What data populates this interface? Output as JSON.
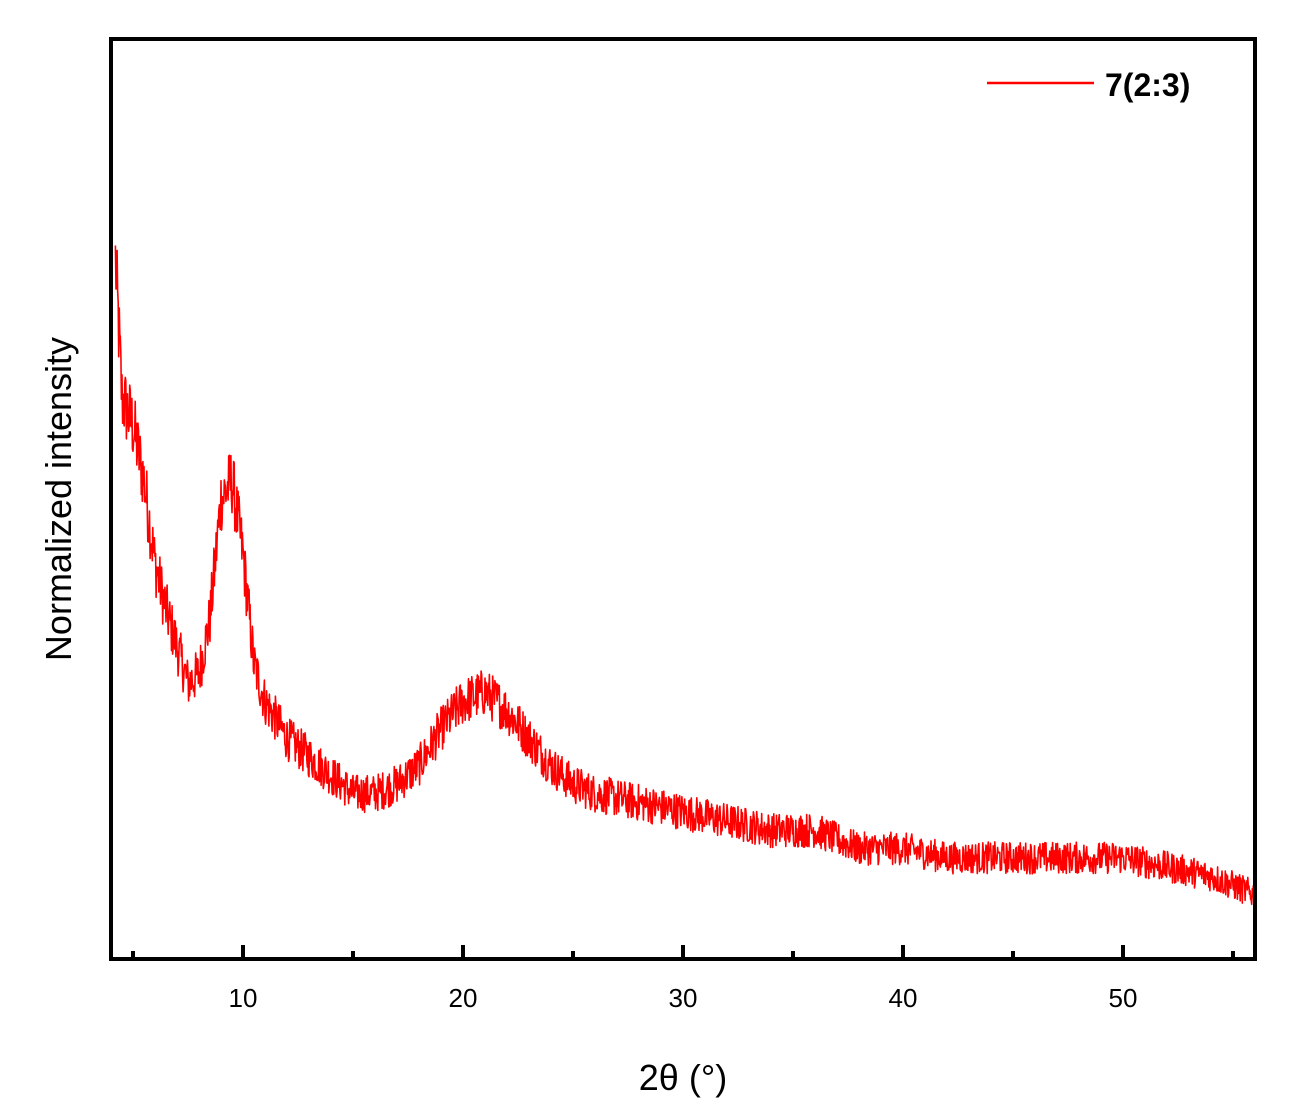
{
  "chart_data": {
    "type": "line",
    "title": "",
    "xlabel": "2θ (°)",
    "ylabel": "Normalized intensity",
    "xlim": [
      4,
      56
    ],
    "ylim": [
      0,
      1
    ],
    "x_ticks_major": [
      10,
      20,
      30,
      40,
      50
    ],
    "x_ticks_minor": [
      5,
      15,
      25,
      35,
      45,
      55
    ],
    "y_tick_labels_shown": false,
    "grid": false,
    "legend_position": "top-right",
    "colors": {
      "series": "#ff0000",
      "axes": "#000000"
    },
    "series": [
      {
        "name": "7(2:3)",
        "x": [
          4.2,
          4.5,
          5.0,
          5.5,
          6.0,
          6.5,
          7.0,
          7.5,
          8.0,
          8.5,
          9.0,
          9.5,
          10.0,
          10.5,
          11.0,
          12.0,
          13.0,
          14.0,
          15.0,
          16.0,
          17.0,
          18.0,
          19.0,
          20.0,
          21.0,
          22.0,
          23.0,
          24.0,
          25.0,
          26.0,
          28.0,
          30.0,
          32.0,
          34.0,
          36.0,
          38.0,
          40.0,
          42.0,
          44.0,
          46.0,
          48.0,
          50.0,
          52.0,
          54.0,
          55.0,
          56.0
        ],
        "y": [
          0.76,
          0.61,
          0.58,
          0.52,
          0.43,
          0.38,
          0.34,
          0.3,
          0.31,
          0.37,
          0.5,
          0.52,
          0.44,
          0.32,
          0.28,
          0.24,
          0.22,
          0.2,
          0.18,
          0.18,
          0.19,
          0.21,
          0.25,
          0.28,
          0.29,
          0.27,
          0.24,
          0.21,
          0.19,
          0.18,
          0.17,
          0.16,
          0.15,
          0.14,
          0.14,
          0.12,
          0.12,
          0.11,
          0.11,
          0.11,
          0.11,
          0.11,
          0.1,
          0.09,
          0.08,
          0.07
        ]
      }
    ]
  }
}
